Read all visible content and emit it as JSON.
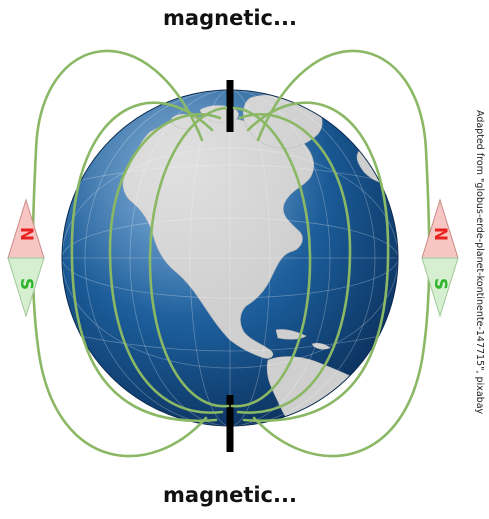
{
  "labels": {
    "top": "magnetic...",
    "bottom": "magnetic..."
  },
  "credit": "Adapted from \"globus-erde-planet-kontinente-147715\", pixabay",
  "compasses": [
    {
      "north_label": "N",
      "south_label": "S"
    },
    {
      "north_label": "N",
      "south_label": "S"
    }
  ],
  "colors": {
    "field_line": "#8ab865",
    "ocean": "#1a5a96",
    "land": "#cfcfcf",
    "axis": "#000000",
    "north_fill": "#f7c6c3",
    "north_text": "#e8221f",
    "south_fill": "#d7efd1",
    "south_text": "#2db52d"
  }
}
